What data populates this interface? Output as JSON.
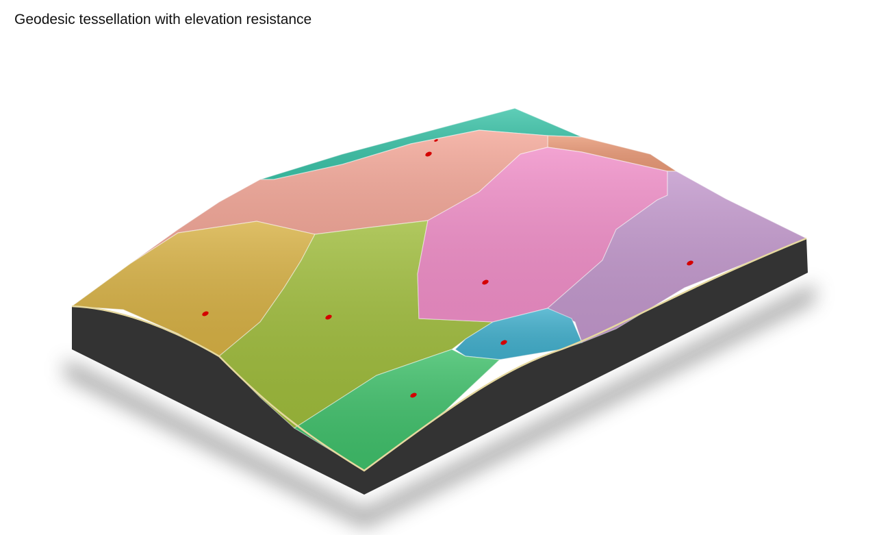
{
  "title": "Geodesic tessellation with elevation resistance",
  "colors": {
    "slab": "#333333",
    "edge": "#e6d9a0",
    "marker": "#d40000",
    "shadow": "#555555"
  },
  "regions": [
    {
      "name": "teal",
      "color": "#3cc3a8"
    },
    {
      "name": "orange",
      "color": "#e99a78"
    },
    {
      "name": "salmon",
      "color": "#f3a798"
    },
    {
      "name": "yellow",
      "color": "#d7b145"
    },
    {
      "name": "olive-green",
      "color": "#9fbc3c"
    },
    {
      "name": "pink",
      "color": "#f08fc8"
    },
    {
      "name": "purple",
      "color": "#c298cc"
    },
    {
      "name": "blue",
      "color": "#42afcc"
    },
    {
      "name": "green",
      "color": "#3fbf6a"
    }
  ],
  "marker_count": 8
}
